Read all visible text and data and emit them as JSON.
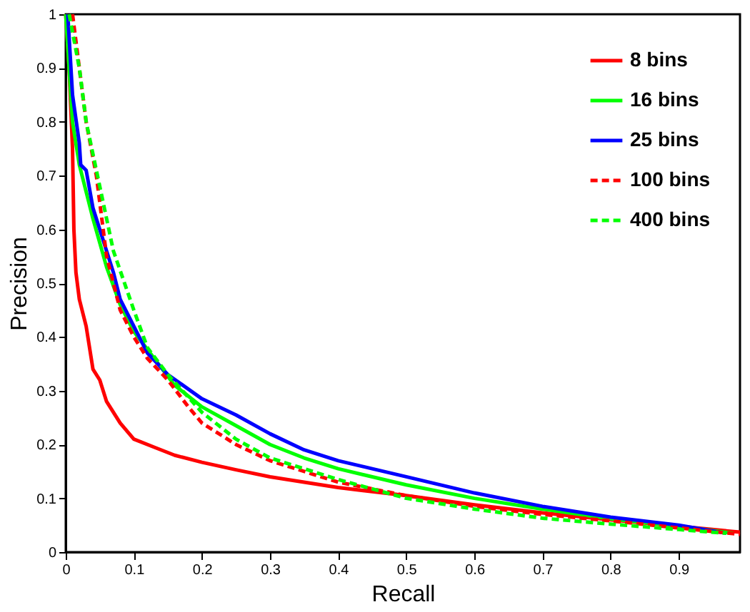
{
  "chart_data": {
    "type": "line",
    "xlabel": "Recall",
    "ylabel": "Precision",
    "xlim": [
      0,
      0.99
    ],
    "ylim": [
      0,
      1
    ],
    "xticks": [
      0,
      0.1,
      0.2,
      0.3,
      0.4,
      0.5,
      0.6,
      0.7,
      0.8,
      0.9
    ],
    "yticks": [
      0,
      0.1,
      0.2,
      0.3,
      0.4,
      0.5,
      0.6,
      0.7,
      0.8,
      0.9,
      1
    ],
    "grid": false,
    "legend": "top right",
    "marker": "none",
    "series": [
      {
        "name": "8 bins",
        "color": "#ff0000",
        "line_style": "solid",
        "x": [
          0,
          0.005,
          0.01,
          0.012,
          0.015,
          0.02,
          0.03,
          0.04,
          0.05,
          0.06,
          0.08,
          0.1,
          0.13,
          0.16,
          0.2,
          0.25,
          0.3,
          0.35,
          0.4,
          0.5,
          0.6,
          0.7,
          0.8,
          0.9,
          0.99
        ],
        "values": [
          1,
          0.9,
          0.75,
          0.6,
          0.52,
          0.47,
          0.42,
          0.34,
          0.32,
          0.28,
          0.24,
          0.21,
          0.195,
          0.18,
          0.167,
          0.153,
          0.14,
          0.13,
          0.12,
          0.105,
          0.088,
          0.073,
          0.06,
          0.048,
          0.037
        ]
      },
      {
        "name": "16 bins",
        "color": "#00ff00",
        "line_style": "solid",
        "x": [
          0,
          0.005,
          0.01,
          0.02,
          0.04,
          0.06,
          0.08,
          0.1,
          0.13,
          0.16,
          0.2,
          0.25,
          0.3,
          0.35,
          0.4,
          0.5,
          0.6,
          0.7,
          0.8,
          0.9,
          0.98
        ],
        "values": [
          1,
          0.9,
          0.8,
          0.72,
          0.62,
          0.53,
          0.46,
          0.41,
          0.36,
          0.31,
          0.27,
          0.235,
          0.2,
          0.175,
          0.155,
          0.125,
          0.1,
          0.08,
          0.062,
          0.048,
          0.035
        ]
      },
      {
        "name": "25 bins",
        "color": "#0000ff",
        "line_style": "solid",
        "x": [
          0.003,
          0.01,
          0.02,
          0.022,
          0.03,
          0.04,
          0.055,
          0.07,
          0.08,
          0.1,
          0.12,
          0.15,
          0.2,
          0.25,
          0.3,
          0.35,
          0.4,
          0.45,
          0.5,
          0.6,
          0.7,
          0.8,
          0.9,
          0.97
        ],
        "values": [
          1,
          0.85,
          0.76,
          0.72,
          0.71,
          0.64,
          0.58,
          0.52,
          0.47,
          0.42,
          0.37,
          0.33,
          0.285,
          0.255,
          0.22,
          0.19,
          0.17,
          0.155,
          0.14,
          0.11,
          0.085,
          0.065,
          0.05,
          0.035
        ]
      },
      {
        "name": "100 bins",
        "color": "#ff0000",
        "line_style": "dashed",
        "x": [
          0.01,
          0.02,
          0.03,
          0.045,
          0.06,
          0.08,
          0.1,
          0.12,
          0.15,
          0.18,
          0.2,
          0.25,
          0.3,
          0.35,
          0.4,
          0.5,
          0.6,
          0.7,
          0.8,
          0.9,
          0.99
        ],
        "values": [
          1,
          0.9,
          0.8,
          0.7,
          0.55,
          0.45,
          0.4,
          0.36,
          0.32,
          0.27,
          0.24,
          0.2,
          0.17,
          0.15,
          0.13,
          0.105,
          0.085,
          0.07,
          0.058,
          0.045,
          0.033
        ]
      },
      {
        "name": "400 bins",
        "color": "#00ff00",
        "line_style": "dashed",
        "x": [
          0.005,
          0.02,
          0.03,
          0.05,
          0.07,
          0.1,
          0.12,
          0.15,
          0.2,
          0.25,
          0.3,
          0.35,
          0.4,
          0.5,
          0.6,
          0.7,
          0.8,
          0.9,
          0.97
        ],
        "values": [
          1,
          0.9,
          0.8,
          0.68,
          0.56,
          0.45,
          0.38,
          0.33,
          0.26,
          0.21,
          0.175,
          0.155,
          0.135,
          0.1,
          0.08,
          0.063,
          0.052,
          0.042,
          0.035
        ]
      }
    ]
  }
}
